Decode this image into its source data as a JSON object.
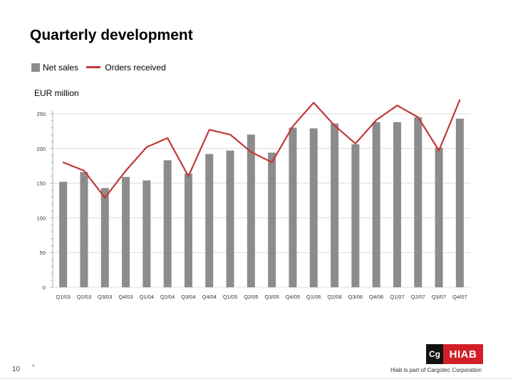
{
  "header": {
    "title": "Quarterly development"
  },
  "legend": {
    "bar_label": "Net sales",
    "line_label": "Orders received"
  },
  "unit_label": "EUR million",
  "footer": {
    "page_number": "10",
    "page_mark": "*",
    "logo_text": "HIAB",
    "tagline": "Hiab is part of Cargotec Corporation"
  },
  "colors": {
    "bar": "#8c8c8c",
    "line": "#c0383a",
    "brand": "#d21f26"
  },
  "chart_data": {
    "type": "bar",
    "title": "Quarterly development",
    "ylabel": "EUR million",
    "ylim": [
      0,
      250
    ],
    "yticks": [
      0,
      50,
      100,
      150,
      200,
      250
    ],
    "categories": [
      "Q1/03",
      "Q2/03",
      "Q3/03",
      "Q4/03",
      "Q1/04",
      "Q2/04",
      "Q3/04",
      "Q4/04",
      "Q1/05",
      "Q2/05",
      "Q3/05",
      "Q4/05",
      "Q1/06",
      "Q2/06",
      "Q3/06",
      "Q4/06",
      "Q1/07",
      "Q2/07",
      "Q3/07",
      "Q4/07"
    ],
    "series": [
      {
        "name": "Net sales",
        "type": "bar",
        "values": [
          152,
          166,
          143,
          159,
          154,
          183,
          164,
          192,
          197,
          220,
          194,
          230,
          229,
          236,
          206,
          238,
          238,
          245,
          201,
          243
        ]
      },
      {
        "name": "Orders received",
        "type": "line",
        "values": [
          180,
          168,
          129,
          168,
          202,
          215,
          160,
          227,
          220,
          195,
          180,
          232,
          266,
          233,
          207,
          241,
          262,
          245,
          197,
          270
        ]
      }
    ],
    "grid": true,
    "legend_position": "top-left"
  }
}
